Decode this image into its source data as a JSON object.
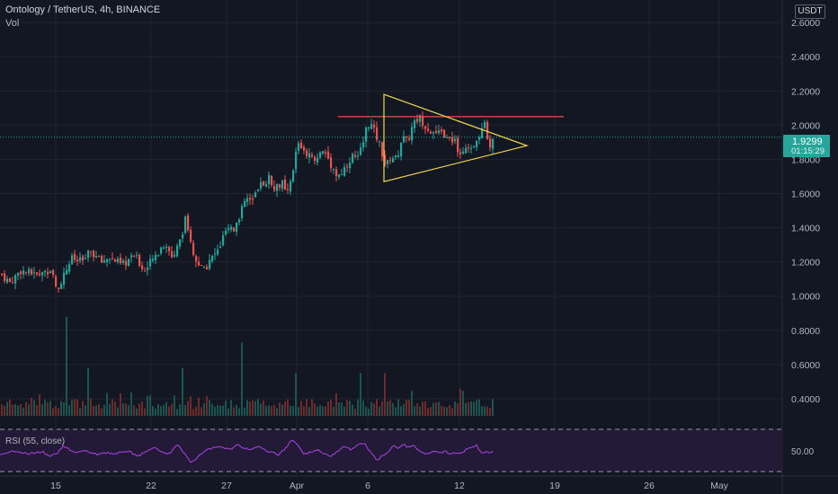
{
  "header": {
    "title": "Ontology / TetherUS, 4h, BINANCE",
    "volume_label": "Vol"
  },
  "rsi_pane": {
    "label": "RSI (55, close)",
    "axis_label": "50.00",
    "upper_level": 70,
    "lower_level": 30,
    "line_color": "#b043e8"
  },
  "currency_badge": "USDT",
  "last_price_badge": {
    "price": "1.9299",
    "countdown": "01:15:29"
  },
  "colors": {
    "up": "#26a69a",
    "down": "#ef5350",
    "background": "#131722",
    "triangle": "#f0d74f",
    "resistance": "#e0524f"
  },
  "chart_data": {
    "type": "candlestick",
    "symbol": "Ontology / TetherUS",
    "interval": "4h",
    "exchange": "BINANCE",
    "y_axis_ticks": [
      "2.6000",
      "2.4000",
      "2.2000",
      "2.0000",
      "1.8000",
      "1.6000",
      "1.4000",
      "1.2000",
      "1.0000",
      "0.8000",
      "0.6000",
      "0.4000"
    ],
    "ylim": [
      0.3,
      2.69
    ],
    "x_axis_ticks": [
      "15",
      "22",
      "27",
      "Apr",
      "6",
      "12",
      "19",
      "26",
      "May"
    ],
    "last_price": 1.9299,
    "close_path": [
      [
        0,
        1.13
      ],
      [
        10,
        1.08
      ],
      [
        22,
        1.15
      ],
      [
        40,
        1.12
      ],
      [
        55,
        1.16
      ],
      [
        62,
        1.04
      ],
      [
        68,
        1.1
      ],
      [
        78,
        1.22
      ],
      [
        90,
        1.2
      ],
      [
        100,
        1.26
      ],
      [
        112,
        1.2
      ],
      [
        120,
        1.23
      ],
      [
        135,
        1.18
      ],
      [
        148,
        1.24
      ],
      [
        160,
        1.15
      ],
      [
        170,
        1.22
      ],
      [
        180,
        1.3
      ],
      [
        190,
        1.23
      ],
      [
        198,
        1.3
      ],
      [
        205,
        1.45
      ],
      [
        212,
        1.28
      ],
      [
        218,
        1.18
      ],
      [
        226,
        1.15
      ],
      [
        234,
        1.22
      ],
      [
        242,
        1.27
      ],
      [
        250,
        1.38
      ],
      [
        258,
        1.38
      ],
      [
        266,
        1.48
      ],
      [
        272,
        1.57
      ],
      [
        280,
        1.55
      ],
      [
        290,
        1.66
      ],
      [
        298,
        1.69
      ],
      [
        306,
        1.63
      ],
      [
        312,
        1.67
      ],
      [
        318,
        1.58
      ],
      [
        324,
        1.7
      ],
      [
        330,
        1.9
      ],
      [
        338,
        1.85
      ],
      [
        345,
        1.8
      ],
      [
        352,
        1.82
      ],
      [
        360,
        1.85
      ],
      [
        368,
        1.76
      ],
      [
        375,
        1.7
      ],
      [
        382,
        1.75
      ],
      [
        390,
        1.82
      ],
      [
        398,
        1.8
      ],
      [
        404,
        1.95
      ],
      [
        410,
        2.02
      ],
      [
        416,
        1.95
      ],
      [
        422,
        1.88
      ],
      [
        428,
        1.75
      ],
      [
        434,
        1.82
      ],
      [
        440,
        1.8
      ],
      [
        446,
        1.93
      ],
      [
        452,
        1.9
      ],
      [
        458,
        2.0
      ],
      [
        465,
        2.05
      ],
      [
        472,
        2.0
      ],
      [
        478,
        1.97
      ],
      [
        485,
        1.94
      ],
      [
        492,
        1.96
      ],
      [
        498,
        1.9
      ],
      [
        504,
        1.92
      ],
      [
        510,
        1.84
      ],
      [
        516,
        1.86
      ],
      [
        522,
        1.83
      ],
      [
        528,
        1.92
      ],
      [
        534,
        1.97
      ],
      [
        538,
        2.0
      ],
      [
        542,
        1.86
      ],
      [
        546,
        1.9
      ],
      [
        549,
        1.93
      ]
    ],
    "volume_spikes": [
      [
        72,
        0.88
      ],
      [
        98,
        0.58
      ],
      [
        202,
        0.58
      ],
      [
        268,
        0.73
      ],
      [
        328,
        0.55
      ],
      [
        401,
        0.55
      ],
      [
        428,
        0.55
      ]
    ],
    "rsi_midline": 50,
    "drawings": {
      "resistance_line": {
        "x_from": 376,
        "x_to": 627,
        "price": 2.05
      },
      "triangle": {
        "apex": [
          427,
          2.18
        ],
        "tip": [
          586,
          1.88
        ],
        "base": [
          427,
          1.67
        ]
      }
    }
  }
}
